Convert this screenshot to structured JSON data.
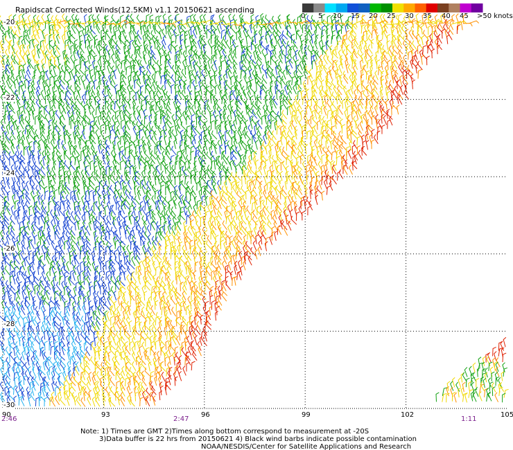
{
  "header": {
    "title": "Rapidscat Corrected Winds(12.5KM) v1.1 20150621 ascending",
    "units": ">50 knots"
  },
  "colorbar": {
    "segments": [
      "#3a3a3a",
      "#8a8a8a",
      "#00e0ff",
      "#00a8f0",
      "#1050d8",
      "#1060c0",
      "#00b800",
      "#009000",
      "#f0e000",
      "#ffa800",
      "#ff6000",
      "#e00000",
      "#7a4020",
      "#b08060",
      "#c000d0",
      "#7000a0"
    ],
    "labels": [
      "0",
      "5",
      "10",
      "15",
      "20",
      "25",
      "30",
      "35",
      "40",
      "45"
    ]
  },
  "map": {
    "lat_labels": [
      "-20",
      "-22",
      "-24",
      "-26",
      "-28",
      "-30"
    ],
    "lon_labels": [
      "90",
      "93",
      "96",
      "99",
      "102",
      "105"
    ],
    "pass_times": [
      "2:46",
      "2:47",
      "1:11"
    ],
    "lat_range": [
      -30,
      -20
    ],
    "lon_range": [
      90,
      105
    ]
  },
  "footer": {
    "note1": "Note: 1) Times are GMT 2)Times along bottom correspond to measurement at -20S",
    "note2": "3)Data buffer is 22 hrs from 20150621 4) Black wind barbs indicate possible contamination",
    "credit": "NOAA/NESDIS/Center for Satellite Applications and Research"
  },
  "colors": {
    "blue": "#1040d0",
    "cyan": "#20b0f0",
    "green": "#10a010",
    "yellow": "#f0d800",
    "orange": "#ff9000",
    "red": "#e02000",
    "grid": "#000000"
  }
}
